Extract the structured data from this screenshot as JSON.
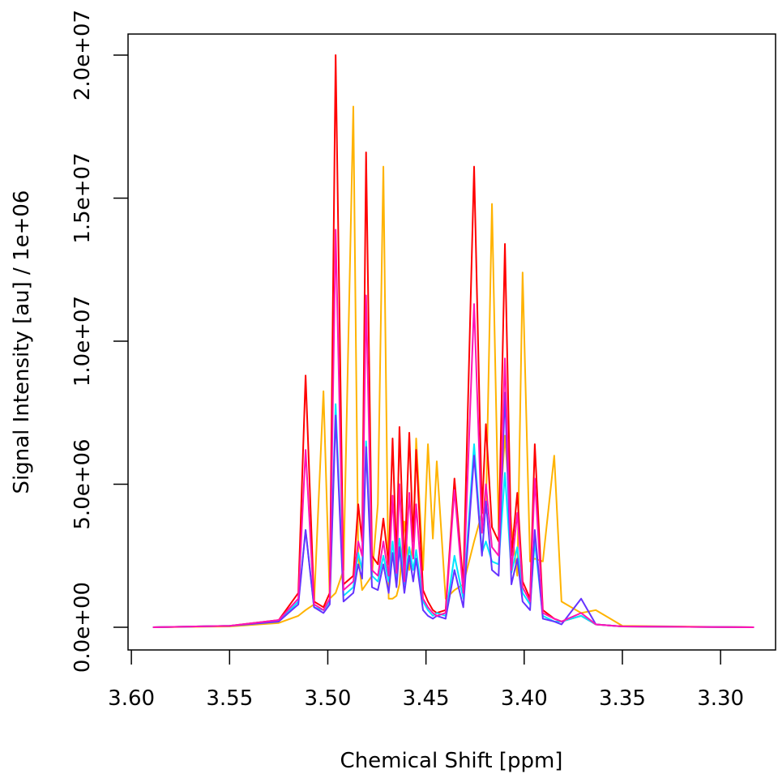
{
  "chart_data": {
    "type": "line",
    "xlabel": "Chemical Shift [ppm]",
    "ylabel": "Signal Intensity [au] / 1e+06",
    "xlim": [
      3.6017,
      3.272
    ],
    "ylim": [
      -793000,
      20737000
    ],
    "xticks": [
      {
        "value": 3.6,
        "label": "3.60"
      },
      {
        "value": 3.55,
        "label": "3.55"
      },
      {
        "value": 3.5,
        "label": "3.50"
      },
      {
        "value": 3.45,
        "label": "3.45"
      },
      {
        "value": 3.4,
        "label": "3.40"
      },
      {
        "value": 3.35,
        "label": "3.35"
      },
      {
        "value": 3.3,
        "label": "3.30"
      }
    ],
    "yticks": [
      {
        "value": 0,
        "label": "0.0e+00"
      },
      {
        "value": 5000000,
        "label": "5.0e+06"
      },
      {
        "value": 10000000,
        "label": "1.0e+07"
      },
      {
        "value": 15000000,
        "label": "1.5e+07"
      },
      {
        "value": 20000000,
        "label": "2.0e+07"
      }
    ],
    "x": [
      3.589,
      3.55,
      3.525,
      3.515,
      3.5113,
      3.507,
      3.5022,
      3.499,
      3.496,
      3.492,
      3.487,
      3.4845,
      3.4825,
      3.4805,
      3.4775,
      3.4745,
      3.4717,
      3.469,
      3.467,
      3.465,
      3.4635,
      3.461,
      3.4585,
      3.4565,
      3.455,
      3.4515,
      3.449,
      3.4465,
      3.4445,
      3.44,
      3.4355,
      3.431,
      3.4255,
      3.4215,
      3.4195,
      3.4164,
      3.413,
      3.4098,
      3.4065,
      3.4035,
      3.4008,
      3.397,
      3.3946,
      3.3905,
      3.3847,
      3.381,
      3.371,
      3.3635,
      3.35,
      3.283
    ],
    "series": [
      {
        "color": "#ffb300",
        "values": [
          0,
          30000.0,
          150000.0,
          400000.0,
          600000.0,
          800000.0,
          8250000.0,
          1000000.0,
          1200000.0,
          2000000.0,
          18200000.0,
          2500000.0,
          1300000.0,
          1500000.0,
          1800000.0,
          4300000.0,
          16100000.0,
          1000000.0,
          1000000.0,
          1100000.0,
          1500000.0,
          3700000.0,
          2000000.0,
          3000000.0,
          6600000.0,
          2000000.0,
          6400000.0,
          3100000.0,
          5800000.0,
          1000000.0,
          1300000.0,
          1500000.0,
          3000000.0,
          4000000.0,
          4000000.0,
          14800000.0,
          3400000.0,
          6700000.0,
          3500000.0,
          1800000.0,
          12400000.0,
          2300000.0,
          2400000.0,
          2300000.0,
          6000000.0,
          900000.0,
          500000.0,
          600000.0,
          50000.0,
          0
        ]
      },
      {
        "color": "#ff0000",
        "values": [
          0,
          50000.0,
          250000.0,
          1200000.0,
          8800000.0,
          900000.0,
          700000.0,
          1200000.0,
          20000000.0,
          1500000.0,
          1800000.0,
          4300000.0,
          3000000.0,
          16600000.0,
          2500000.0,
          2200000.0,
          3800000.0,
          2200000.0,
          6600000.0,
          2300000.0,
          7000000.0,
          2000000.0,
          6800000.0,
          3000000.0,
          6200000.0,
          1300000.0,
          900000.0,
          600000.0,
          500000.0,
          600000.0,
          5200000.0,
          1500000.0,
          16100000.0,
          4000000.0,
          7100000.0,
          3500000.0,
          3000000.0,
          13400000.0,
          2500000.0,
          4700000.0,
          1600000.0,
          1000000.0,
          6400000.0,
          600000.0,
          300000.0,
          200000.0,
          400000.0,
          100000.0,
          30000.0,
          0
        ]
      },
      {
        "color": "#00e5ff",
        "values": [
          0,
          50000.0,
          200000.0,
          900000.0,
          3400000.0,
          700000.0,
          600000.0,
          900000.0,
          7800000.0,
          1100000.0,
          1400000.0,
          2600000.0,
          2000000.0,
          6500000.0,
          1800000.0,
          1600000.0,
          2500000.0,
          1600000.0,
          3000000.0,
          1700000.0,
          3100000.0,
          1500000.0,
          2800000.0,
          2000000.0,
          2700000.0,
          900000.0,
          600000.0,
          400000.0,
          500000.0,
          400000.0,
          2500000.0,
          1000000.0,
          6400000.0,
          2600000.0,
          3000000.0,
          2300000.0,
          2200000.0,
          5400000.0,
          1900000.0,
          2800000.0,
          1200000.0,
          800000.0,
          3000000.0,
          400000.0,
          200000.0,
          200000.0,
          400000.0,
          100000.0,
          30000.0,
          0
        ]
      },
      {
        "color": "#6633ff",
        "values": [
          0,
          50000.0,
          200000.0,
          800000.0,
          3400000.0,
          700000.0,
          500000.0,
          800000.0,
          7400000.0,
          900000.0,
          1200000.0,
          2200000.0,
          1700000.0,
          6300000.0,
          1400000.0,
          1300000.0,
          2200000.0,
          1200000.0,
          2600000.0,
          1400000.0,
          2800000.0,
          1200000.0,
          2500000.0,
          1600000.0,
          2400000.0,
          600000.0,
          400000.0,
          300000.0,
          400000.0,
          300000.0,
          2000000.0,
          700000.0,
          6000000.0,
          2500000.0,
          4400000.0,
          2000000.0,
          1800000.0,
          8200000.0,
          1500000.0,
          2400000.0,
          900000.0,
          600000.0,
          3400000.0,
          300000.0,
          200000.0,
          100000.0,
          1000000.0,
          100000.0,
          30000.0,
          0
        ]
      },
      {
        "color": "#ff14b4",
        "values": [
          0,
          50000.0,
          250000.0,
          1000000.0,
          6200000.0,
          800000.0,
          600000.0,
          1000000.0,
          13900000.0,
          1300000.0,
          1600000.0,
          3000000.0,
          2500000.0,
          11600000.0,
          2000000.0,
          1800000.0,
          3000000.0,
          1800000.0,
          4600000.0,
          1900000.0,
          5000000.0,
          1600000.0,
          4700000.0,
          2400000.0,
          4300000.0,
          1000000.0,
          700000.0,
          500000.0,
          400000.0,
          500000.0,
          4800000.0,
          1200000.0,
          11300000.0,
          3300000.0,
          5000000.0,
          2800000.0,
          2500000.0,
          9400000.0,
          2000000.0,
          4000000.0,
          1400000.0,
          900000.0,
          5200000.0,
          500000.0,
          300000.0,
          200000.0,
          500000.0,
          100000.0,
          30000.0,
          0
        ]
      }
    ]
  }
}
